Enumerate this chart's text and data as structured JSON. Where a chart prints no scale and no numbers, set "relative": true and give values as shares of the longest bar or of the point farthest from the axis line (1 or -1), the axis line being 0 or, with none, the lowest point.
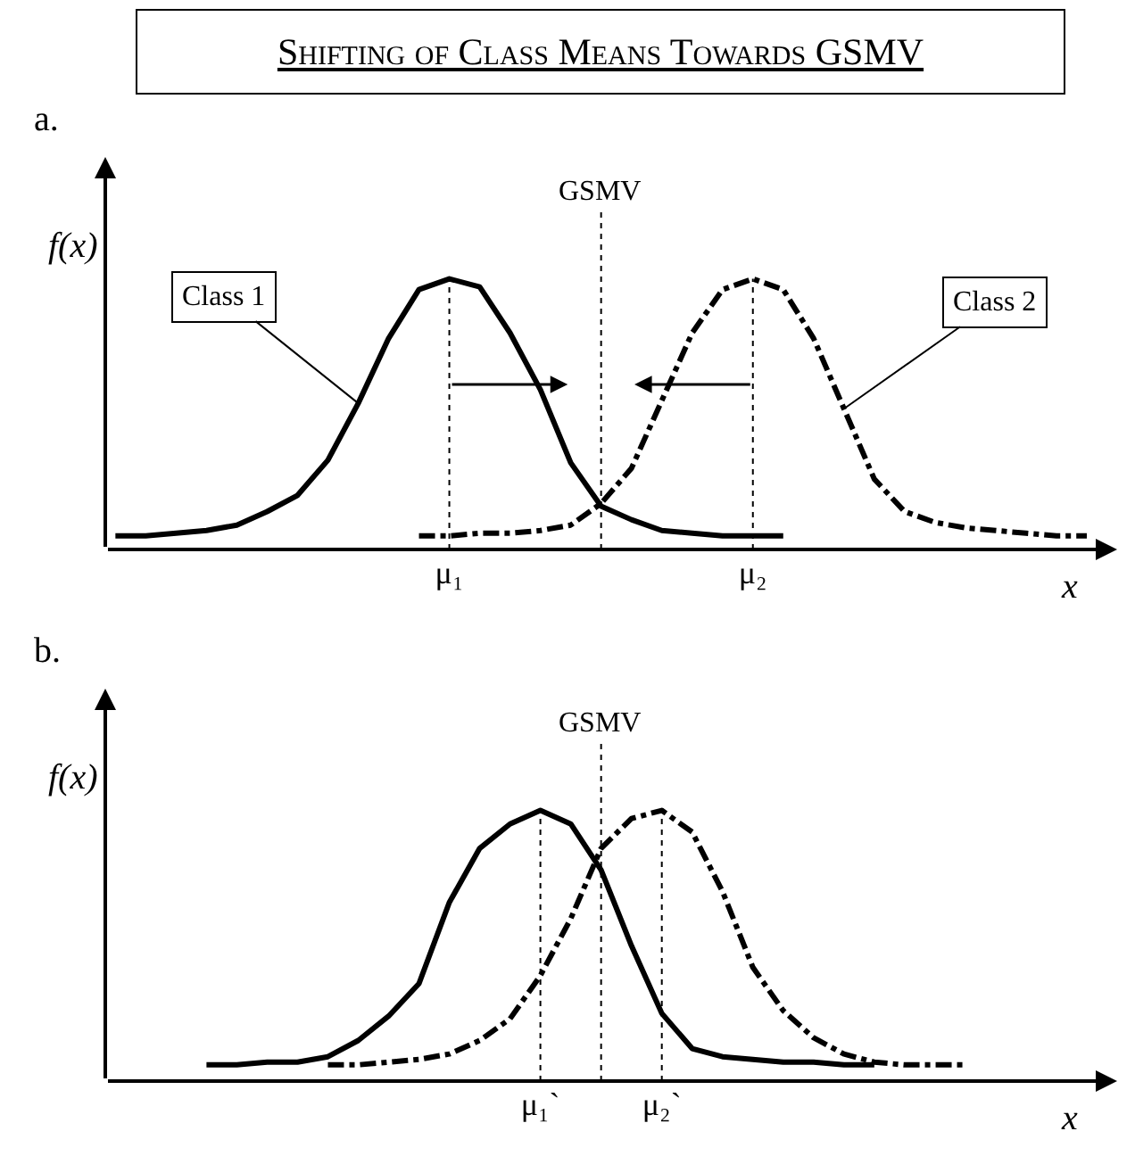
{
  "chart_data": [
    {
      "type": "line",
      "title": "Shifting of Class Means Towards GSMV",
      "subtitle": "a.",
      "relative": true,
      "xlabel": "x",
      "ylabel": "f(x)",
      "grid": "x",
      "categories": [
        null,
        null,
        null,
        null,
        null,
        null,
        null,
        null,
        null,
        null,
        null,
        "μ₁",
        null,
        null,
        null,
        null,
        null,
        null,
        null,
        null,
        null,
        "μ₂",
        null,
        null,
        null,
        null,
        null,
        null,
        null,
        null,
        null,
        null,
        null
      ],
      "ref_lines": [
        {
          "axis": "x",
          "label": "GSMV",
          "line_style": "dotted"
        }
      ],
      "annotations": [
        "Class 1",
        "Class 2"
      ],
      "series": [
        {
          "color": "#000000",
          "line_style": "solid",
          "values": [
            0.05,
            0.05,
            0.06,
            0.07,
            0.09,
            0.14,
            0.2,
            0.33,
            0.54,
            0.78,
            0.96,
            1,
            0.97,
            0.8,
            0.59,
            0.32,
            0.16,
            0.11,
            0.07,
            0.06,
            0.05,
            0.05,
            0.05,
            null,
            null,
            null,
            null,
            null,
            null,
            null,
            null,
            null,
            null
          ]
        },
        {
          "color": "#000000",
          "line_style": "dashed",
          "values": [
            null,
            null,
            null,
            null,
            null,
            null,
            null,
            null,
            null,
            null,
            0.05,
            0.05,
            0.06,
            0.06,
            0.07,
            0.09,
            0.17,
            0.3,
            0.55,
            0.8,
            0.96,
            1,
            0.96,
            0.78,
            0.52,
            0.26,
            0.14,
            0.1,
            0.08,
            0.07,
            0.06,
            0.05,
            0.05
          ]
        }
      ]
    },
    {
      "type": "line",
      "subtitle": "b.",
      "relative": true,
      "xlabel": "x",
      "ylabel": "f(x)",
      "grid": "x",
      "categories": [
        null,
        null,
        null,
        null,
        null,
        null,
        null,
        null,
        null,
        null,
        null,
        null,
        null,
        null,
        "μ₁`",
        null,
        null,
        null,
        "μ₂`",
        null,
        null,
        null,
        null,
        null,
        null,
        null,
        null,
        null,
        null,
        null,
        null,
        null,
        null
      ],
      "ref_lines": [
        {
          "axis": "x",
          "label": "GSMV",
          "line_style": "dotted"
        }
      ],
      "series": [
        {
          "color": "#000000",
          "line_style": "solid",
          "values": [
            null,
            null,
            null,
            0.06,
            0.06,
            0.07,
            0.07,
            0.09,
            0.15,
            0.24,
            0.36,
            0.66,
            0.86,
            0.95,
            1,
            0.95,
            0.78,
            0.5,
            0.25,
            0.12,
            0.09,
            0.08,
            0.07,
            0.07,
            0.06,
            0.06,
            null,
            null,
            null,
            null,
            null,
            null,
            null
          ]
        },
        {
          "color": "#000000",
          "line_style": "dashed",
          "values": [
            null,
            null,
            null,
            null,
            null,
            null,
            null,
            0.06,
            0.06,
            0.07,
            0.08,
            0.1,
            0.15,
            0.23,
            0.39,
            0.6,
            0.86,
            0.97,
            1,
            0.92,
            0.7,
            0.42,
            0.26,
            0.16,
            0.1,
            0.07,
            0.06,
            0.06,
            0.06,
            null,
            null,
            null,
            null
          ]
        }
      ]
    }
  ]
}
